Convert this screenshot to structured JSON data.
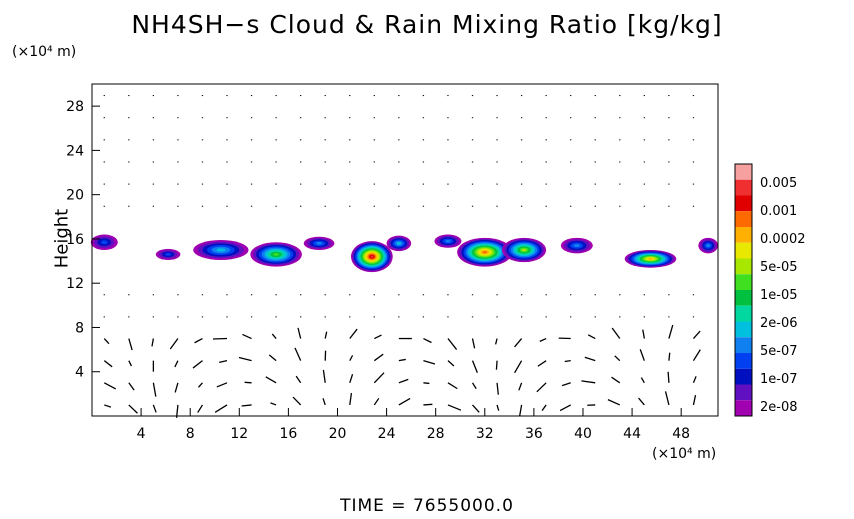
{
  "chart_data": {
    "type": "heatmap",
    "title": "NH4SH−s Cloud & Rain Mixing Ratio [kg/kg]",
    "ylabel": "Height",
    "x_units": "(×10⁴ m)",
    "y_units": "(×10⁴ m)",
    "xlim": [
      0,
      51
    ],
    "ylim": [
      0,
      30
    ],
    "x_ticks": [
      4,
      8,
      12,
      16,
      20,
      24,
      28,
      32,
      36,
      40,
      44,
      48
    ],
    "y_ticks": [
      4,
      8,
      12,
      16,
      20,
      24,
      28
    ],
    "footer": "TIME  =  7655000.0",
    "colorbar": {
      "labels": [
        "0.005",
        "0.001",
        "0.0002",
        "5e-05",
        "1e-05",
        "2e-06",
        "5e-07",
        "1e-07",
        "2e-08"
      ],
      "colors": [
        "#f6a0a0",
        "#f03030",
        "#e00000",
        "#ff6a00",
        "#ffb000",
        "#e8e800",
        "#a8e800",
        "#40e020",
        "#00c040",
        "#00d8a0",
        "#00c0e0",
        "#1080f0",
        "#0040f0",
        "#0010c0",
        "#6010c0",
        "#a000b0"
      ]
    },
    "cloud_blobs": [
      {
        "x": 1.0,
        "y": 15.7,
        "w": 2.2,
        "h": 1.4,
        "peak": 0.25
      },
      {
        "x": 6.2,
        "y": 14.6,
        "w": 2.0,
        "h": 1.0,
        "peak": 0.2
      },
      {
        "x": 10.5,
        "y": 15.0,
        "w": 4.5,
        "h": 1.8,
        "peak": 0.35
      },
      {
        "x": 15.0,
        "y": 14.6,
        "w": 4.2,
        "h": 2.2,
        "peak": 0.55
      },
      {
        "x": 18.5,
        "y": 15.6,
        "w": 2.5,
        "h": 1.2,
        "peak": 0.3
      },
      {
        "x": 22.8,
        "y": 14.4,
        "w": 3.4,
        "h": 2.8,
        "peak": 0.95
      },
      {
        "x": 25.0,
        "y": 15.6,
        "w": 2.0,
        "h": 1.4,
        "peak": 0.4
      },
      {
        "x": 29.0,
        "y": 15.8,
        "w": 2.2,
        "h": 1.2,
        "peak": 0.3
      },
      {
        "x": 32.0,
        "y": 14.8,
        "w": 4.5,
        "h": 2.6,
        "peak": 0.8
      },
      {
        "x": 35.2,
        "y": 15.0,
        "w": 3.6,
        "h": 2.2,
        "peak": 0.65
      },
      {
        "x": 39.5,
        "y": 15.4,
        "w": 2.6,
        "h": 1.4,
        "peak": 0.3
      },
      {
        "x": 45.5,
        "y": 14.2,
        "w": 4.2,
        "h": 1.6,
        "peak": 0.75
      },
      {
        "x": 50.2,
        "y": 15.4,
        "w": 1.6,
        "h": 1.4,
        "peak": 0.3
      }
    ]
  }
}
